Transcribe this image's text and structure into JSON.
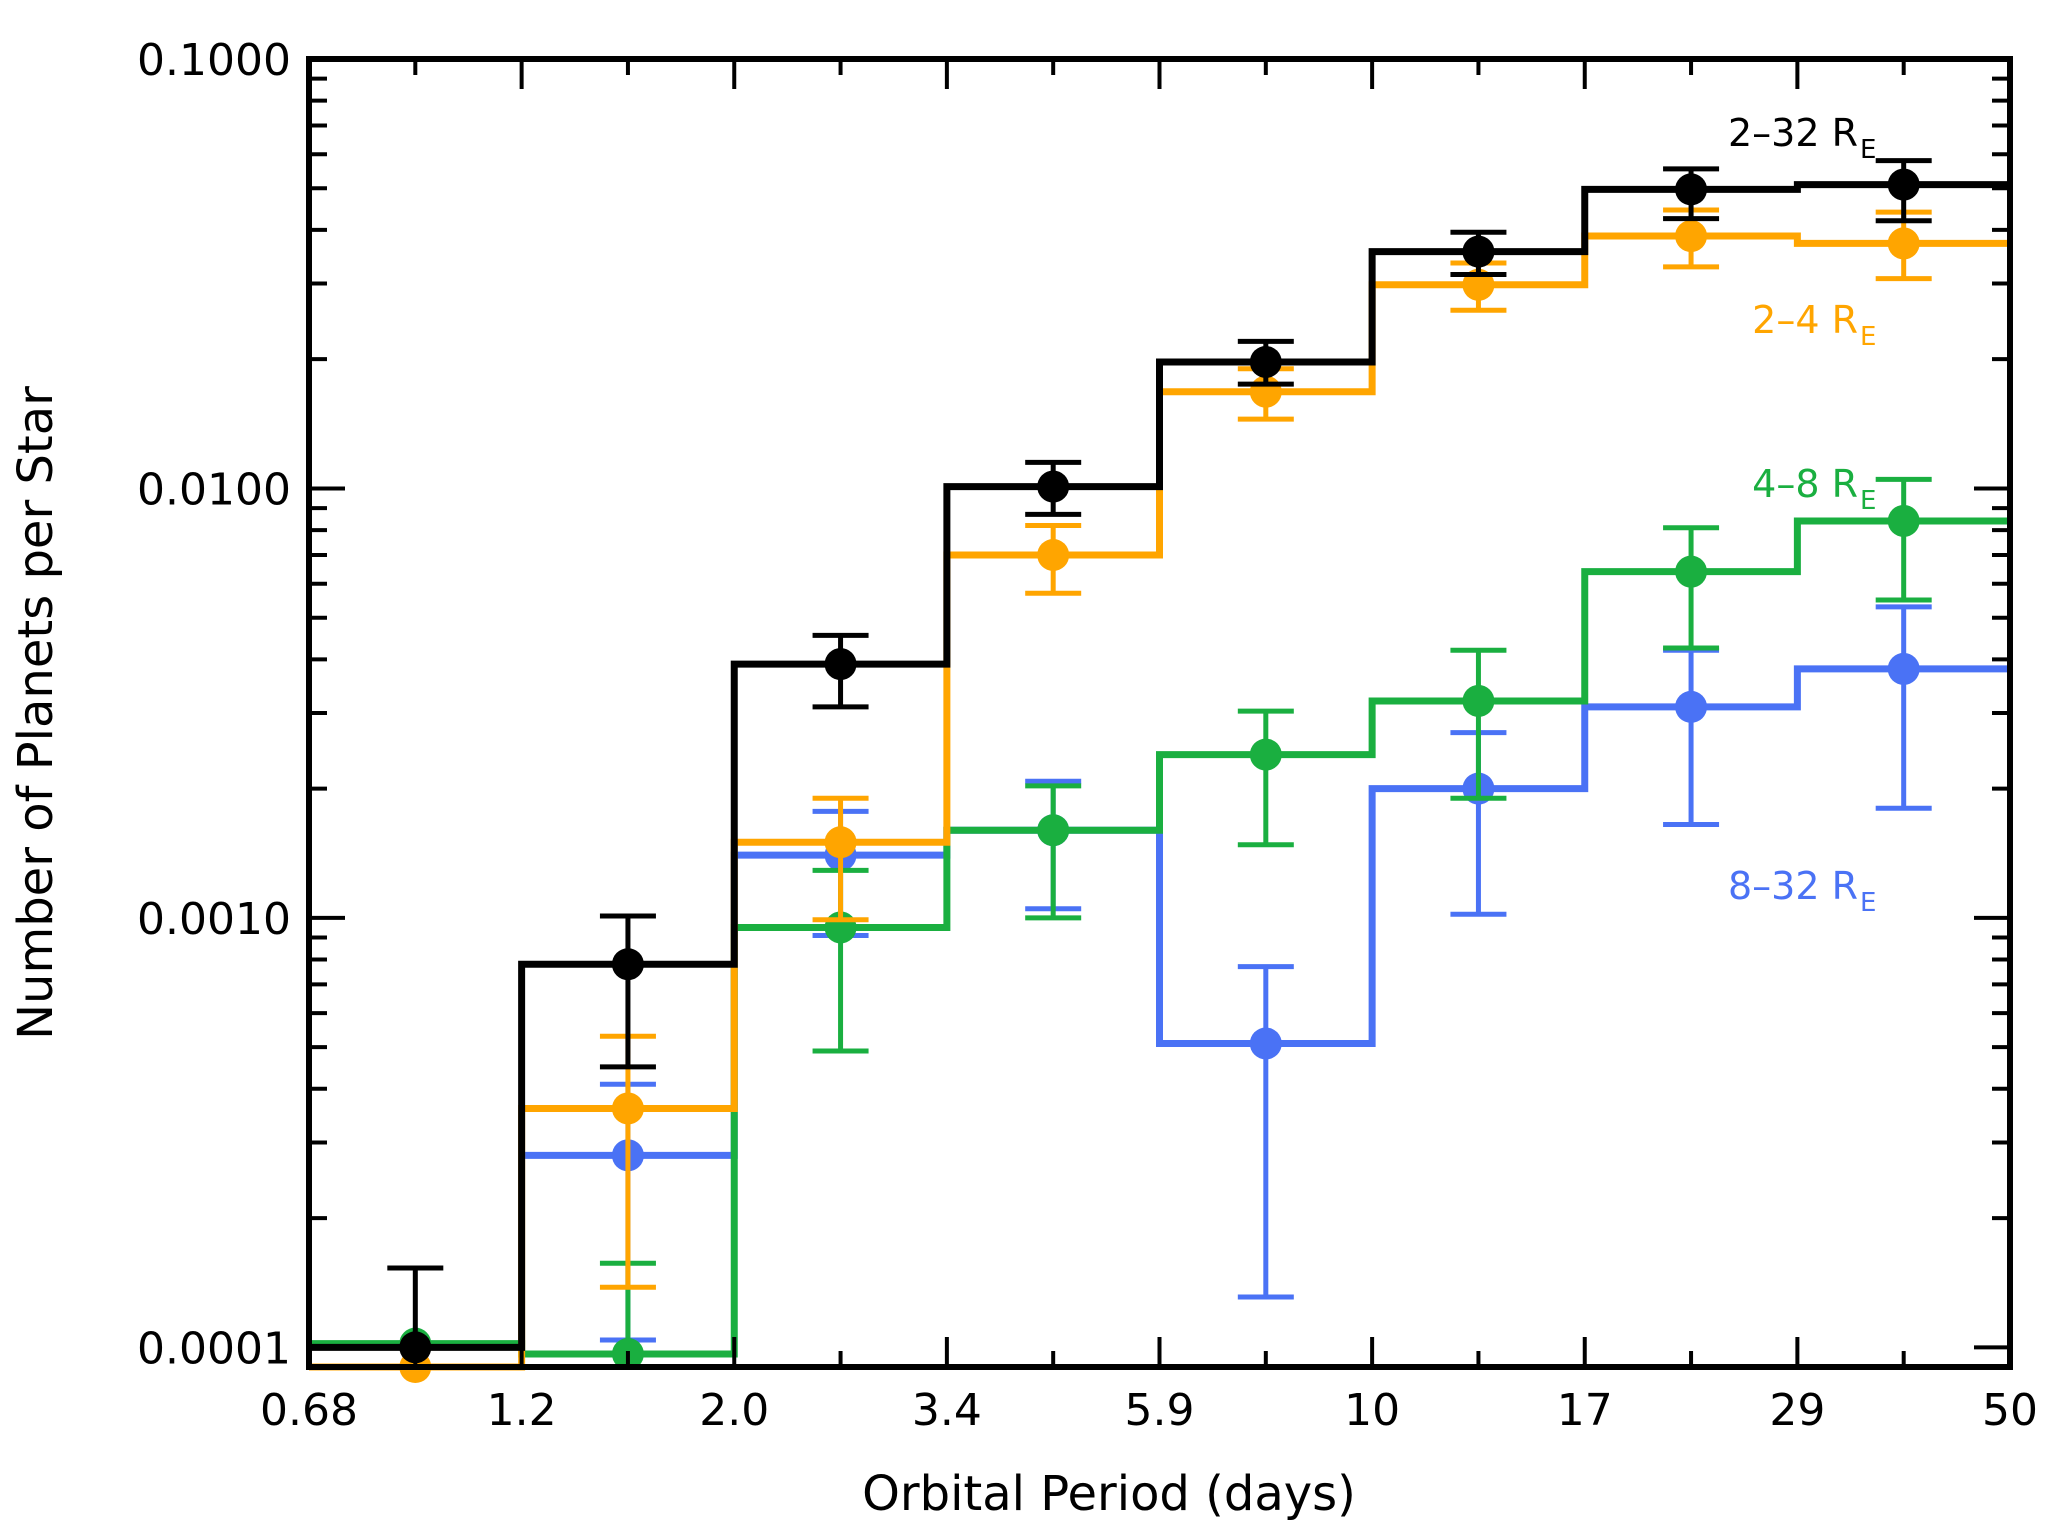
{
  "chart_data": {
    "type": "line",
    "xlabel": "Orbital Period (days)",
    "ylabel": "Number of Planets per Star",
    "x_scale": "log",
    "y_scale": "log",
    "xlim": [
      0.68,
      50
    ],
    "ylim": [
      9e-05,
      0.1
    ],
    "x_bin_edges": [
      0.68,
      1.2,
      2.0,
      3.4,
      5.9,
      10,
      17,
      29,
      50
    ],
    "x_ticks": [
      "0.68",
      "1.2",
      "2.0",
      "3.4",
      "5.9",
      "10",
      "17",
      "29",
      "50"
    ],
    "y_ticks": [
      "0.0001",
      "0.0010",
      "0.0100",
      "0.1000"
    ],
    "grid": false,
    "legend_placement": "right, labels next to series",
    "series": [
      {
        "label": "2–32 R",
        "label_sub": "E",
        "color": "#000000",
        "values": [
          0.0001,
          0.00078,
          0.0039,
          0.0101,
          0.0197,
          0.0356,
          0.0497,
          0.051
        ],
        "err_high": [
          0.000153,
          0.00101,
          0.00455,
          0.0115,
          0.022,
          0.0395,
          0.0555,
          0.058
        ],
        "err_low": [
          null,
          0.00045,
          0.0031,
          0.0087,
          0.0175,
          0.0315,
          0.0425,
          0.042
        ]
      },
      {
        "label": "2–4 R",
        "label_sub": "E",
        "color": "#ffa500",
        "values": [
          9e-05,
          0.00036,
          0.0015,
          0.007,
          0.0168,
          0.0298,
          0.0387,
          0.0372
        ],
        "err_high": [
          null,
          0.00053,
          0.0019,
          0.0082,
          0.019,
          0.0335,
          0.0445,
          0.044
        ],
        "err_low": [
          null,
          0.000138,
          0.00099,
          0.0057,
          0.0145,
          0.026,
          0.0328,
          0.0308
        ]
      },
      {
        "label": "4–8 R",
        "label_sub": "E",
        "color": "#1aaf40",
        "values": [
          0.000102,
          9.65e-05,
          0.00095,
          0.0016,
          0.0024,
          0.0032,
          0.0064,
          0.0084
        ],
        "err_high": [
          null,
          0.000157,
          0.00129,
          0.00203,
          0.00303,
          0.0042,
          0.0081,
          0.0105
        ],
        "err_low": [
          null,
          null,
          0.00049,
          0.001,
          0.00148,
          0.0019,
          0.00425,
          0.0055
        ]
      },
      {
        "label": "8–32 R",
        "label_sub": "E",
        "color": "#4a72f5",
        "values": [
          null,
          0.00028,
          0.0014,
          0.0016,
          0.00051,
          0.002,
          0.0031,
          0.0038
        ],
        "err_high": [
          null,
          0.00041,
          0.00177,
          0.00208,
          0.00077,
          0.0027,
          0.0042,
          0.0053
        ],
        "err_low": [
          null,
          0.000104,
          0.00091,
          0.00105,
          0.000131,
          0.00102,
          0.00165,
          0.0018
        ]
      }
    ]
  }
}
